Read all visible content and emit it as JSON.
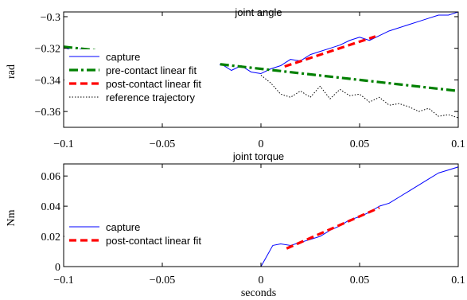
{
  "chart_data": [
    {
      "type": "line",
      "title": "joint angle",
      "xlabel": "",
      "ylabel": "rad",
      "xlim": [
        -0.1,
        0.1
      ],
      "ylim": [
        -0.37,
        -0.297
      ],
      "xticks": [
        -0.1,
        -0.05,
        0,
        0.05,
        0.1
      ],
      "xtick_labels": [
        "−0.1",
        "−0.05",
        "0",
        "0.05",
        "0.1"
      ],
      "yticks": [
        -0.36,
        -0.34,
        -0.32,
        -0.3
      ],
      "ytick_labels": [
        "−0.36",
        "−0.34",
        "−0.32",
        "−0.3"
      ],
      "grid": false,
      "legend_position": "bottom-left",
      "series": [
        {
          "name": "capture",
          "color": "#0000ff",
          "style": "solid",
          "x": [
            -0.1,
            -0.095,
            -0.09,
            -0.085,
            -0.08,
            -0.075,
            -0.07,
            -0.065,
            -0.06,
            -0.055,
            -0.05,
            -0.045,
            -0.04,
            -0.035,
            -0.03,
            -0.025,
            -0.02,
            -0.015,
            -0.01,
            -0.005,
            0,
            0.005,
            0.01,
            0.015,
            0.02,
            0.025,
            0.03,
            0.035,
            0.04,
            0.045,
            0.05,
            0.055,
            0.06,
            0.065,
            0.07,
            0.075,
            0.08,
            0.085,
            0.09,
            0.095,
            0.1
          ],
          "y": [
            -0.319,
            -0.322,
            -0.32,
            -0.324,
            -0.321,
            -0.326,
            -0.323,
            -0.327,
            -0.324,
            -0.326,
            -0.325,
            -0.329,
            -0.327,
            -0.331,
            -0.328,
            -0.332,
            -0.33,
            -0.334,
            -0.331,
            -0.335,
            -0.336,
            -0.333,
            -0.331,
            -0.327,
            -0.328,
            -0.324,
            -0.322,
            -0.32,
            -0.318,
            -0.315,
            -0.313,
            -0.315,
            -0.312,
            -0.309,
            -0.307,
            -0.305,
            -0.303,
            -0.301,
            -0.299,
            -0.299,
            -0.297
          ]
        },
        {
          "name": "pre-contact linear fit",
          "color": "#008000",
          "style": "dashdot",
          "x": [
            -0.1,
            0.1
          ],
          "y": [
            -0.319,
            -0.347
          ]
        },
        {
          "name": "post-contact linear fit",
          "color": "#ff0000",
          "style": "dashed",
          "x": [
            0.012,
            0.058
          ],
          "y": [
            -0.3315,
            -0.3125
          ]
        },
        {
          "name": "reference trajectory",
          "color": "#000000",
          "style": "dotted",
          "x": [
            0,
            0.005,
            0.01,
            0.015,
            0.02,
            0.025,
            0.03,
            0.035,
            0.04,
            0.045,
            0.05,
            0.055,
            0.06,
            0.065,
            0.07,
            0.075,
            0.08,
            0.085,
            0.09,
            0.095,
            0.1
          ],
          "y": [
            -0.337,
            -0.342,
            -0.349,
            -0.351,
            -0.347,
            -0.351,
            -0.344,
            -0.352,
            -0.346,
            -0.35,
            -0.349,
            -0.354,
            -0.351,
            -0.356,
            -0.355,
            -0.357,
            -0.36,
            -0.358,
            -0.363,
            -0.362,
            -0.364
          ]
        }
      ]
    },
    {
      "type": "line",
      "title": "joint torque",
      "xlabel": "seconds",
      "ylabel": "Nm",
      "xlim": [
        -0.1,
        0.1
      ],
      "ylim": [
        0,
        0.068
      ],
      "xticks": [
        -0.1,
        -0.05,
        0,
        0.05,
        0.1
      ],
      "xtick_labels": [
        "−0.1",
        "−0.05",
        "0",
        "0.05",
        "0.1"
      ],
      "yticks": [
        0,
        0.02,
        0.04,
        0.06
      ],
      "ytick_labels": [
        "0",
        "0.02",
        "0.04",
        "0.06"
      ],
      "grid": false,
      "legend_position": "bottom-left",
      "series": [
        {
          "name": "capture",
          "color": "#0000ff",
          "style": "solid",
          "x": [
            -0.1,
            0,
            0.003,
            0.006,
            0.01,
            0.015,
            0.02,
            0.025,
            0.03,
            0.035,
            0.04,
            0.045,
            0.05,
            0.055,
            0.06,
            0.065,
            0.07,
            0.075,
            0.08,
            0.085,
            0.09,
            0.095,
            0.1
          ],
          "y": [
            0,
            0,
            0.007,
            0.014,
            0.015,
            0.014,
            0.016,
            0.018,
            0.02,
            0.024,
            0.027,
            0.031,
            0.033,
            0.036,
            0.04,
            0.042,
            0.046,
            0.05,
            0.054,
            0.058,
            0.062,
            0.064,
            0.066
          ]
        },
        {
          "name": "post-contact linear fit",
          "color": "#ff0000",
          "style": "dashed",
          "x": [
            0.013,
            0.06
          ],
          "y": [
            0.012,
            0.039
          ]
        }
      ]
    }
  ]
}
